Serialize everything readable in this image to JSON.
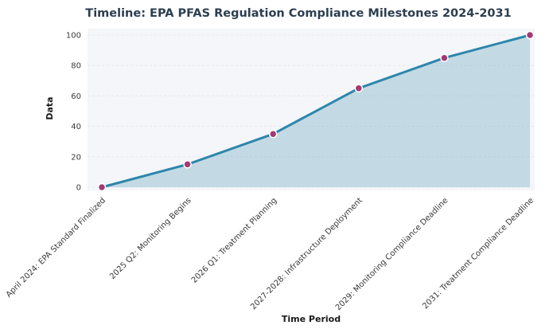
{
  "chart_data": {
    "type": "area",
    "title": "Timeline: EPA PFAS Regulation Compliance Milestones 2024-2031",
    "xlabel": "Time Period",
    "ylabel": "Data",
    "categories": [
      "April 2024: EPA Standard Finalized",
      "2025 Q2: Monitoring Begins",
      "2026 Q1: Treatment Planning",
      "2027-2028: Infrastructure Deployment",
      "2029: Monitoring Compliance Deadline",
      "2031: Treatment Compliance Deadline"
    ],
    "values": [
      0,
      15,
      35,
      65,
      85,
      100
    ],
    "ylim": [
      0,
      100
    ],
    "yticks": [
      0,
      20,
      40,
      60,
      80,
      100
    ],
    "grid": true,
    "legend": "none",
    "x_tick_rotation_deg": 45,
    "styles": {
      "line_color": "#2e86ab",
      "marker_color": "#a23b72",
      "marker_edge_color": "#ffffff",
      "area_color": "#2e86ab",
      "area_opacity": "0.25",
      "plot_background": "#f4f6f9",
      "grid_color": "#e6e9ef",
      "title_color": "#2c3e50",
      "tick_text_color": "#3a3a3a",
      "axis_label_color": "#1a1a1a"
    }
  }
}
